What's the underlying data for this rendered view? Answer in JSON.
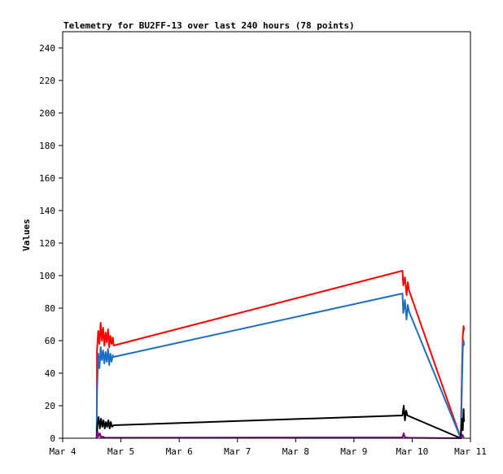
{
  "chart_data": {
    "type": "line",
    "title": "Telemetry for BU2FF-13 over last 240 hours (78 points)",
    "xlabel": "",
    "ylabel": "Values",
    "xlim": [
      "Mar 4",
      "Mar 11"
    ],
    "ylim": [
      0,
      250
    ],
    "grid": false,
    "legend": "none",
    "x_ticks": [
      "Mar 4",
      "Mar 5",
      "Mar 6",
      "Mar 7",
      "Mar 8",
      "Mar 9",
      "Mar 10",
      "Mar 11"
    ],
    "y_ticks": [
      0,
      20,
      40,
      60,
      80,
      100,
      120,
      140,
      160,
      180,
      200,
      220,
      240
    ],
    "series": [
      {
        "color": "#ff0000",
        "points": [
          [
            "Mar 4 14:00",
            0
          ],
          [
            "Mar 4 14:10",
            54
          ],
          [
            "Mar 4 14:40",
            66
          ],
          [
            "Mar 4 15:10",
            58
          ],
          [
            "Mar 4 15:40",
            71
          ],
          [
            "Mar 4 16:10",
            60
          ],
          [
            "Mar 4 16:40",
            68
          ],
          [
            "Mar 4 17:10",
            57
          ],
          [
            "Mar 4 17:40",
            65
          ],
          [
            "Mar 4 18:10",
            59
          ],
          [
            "Mar 4 18:40",
            67
          ],
          [
            "Mar 4 19:10",
            56
          ],
          [
            "Mar 4 19:40",
            63
          ],
          [
            "Mar 4 20:10",
            58
          ],
          [
            "Mar 4 20:40",
            62
          ],
          [
            "Mar 4 21:00",
            57
          ],
          [
            "Mar 9 20:00",
            103
          ],
          [
            "Mar 9 20:20",
            94
          ],
          [
            "Mar 9 21:00",
            99
          ],
          [
            "Mar 9 21:40",
            88
          ],
          [
            "Mar 9 22:10",
            96
          ],
          [
            "Mar 9 22:40",
            91
          ],
          [
            "Mar 10 20:00",
            0
          ],
          [
            "Mar 10 20:30",
            41
          ],
          [
            "Mar 10 20:50",
            63
          ],
          [
            "Mar 10 21:10",
            69
          ],
          [
            "Mar 10 21:20",
            66
          ]
        ]
      },
      {
        "color": "#1a6fc4",
        "points": [
          [
            "Mar 4 14:00",
            0
          ],
          [
            "Mar 4 14:10",
            28
          ],
          [
            "Mar 4 14:40",
            52
          ],
          [
            "Mar 4 15:10",
            43
          ],
          [
            "Mar 4 15:40",
            56
          ],
          [
            "Mar 4 16:10",
            48
          ],
          [
            "Mar 4 16:40",
            54
          ],
          [
            "Mar 4 17:10",
            46
          ],
          [
            "Mar 4 17:40",
            53
          ],
          [
            "Mar 4 18:10",
            47
          ],
          [
            "Mar 4 18:40",
            55
          ],
          [
            "Mar 4 19:10",
            45
          ],
          [
            "Mar 4 19:40",
            52
          ],
          [
            "Mar 4 20:10",
            47
          ],
          [
            "Mar 4 20:40",
            51
          ],
          [
            "Mar 4 21:00",
            50
          ],
          [
            "Mar 9 20:00",
            89
          ],
          [
            "Mar 9 20:20",
            77
          ],
          [
            "Mar 9 21:00",
            85
          ],
          [
            "Mar 9 21:40",
            73
          ],
          [
            "Mar 9 22:10",
            82
          ],
          [
            "Mar 9 22:40",
            78
          ],
          [
            "Mar 10 20:00",
            0
          ],
          [
            "Mar 10 20:30",
            34
          ],
          [
            "Mar 10 20:50",
            55
          ],
          [
            "Mar 10 21:10",
            60
          ],
          [
            "Mar 10 21:20",
            57
          ]
        ]
      },
      {
        "color": "#000000",
        "points": [
          [
            "Mar 4 14:00",
            0
          ],
          [
            "Mar 4 14:20",
            8
          ],
          [
            "Mar 4 14:50",
            13
          ],
          [
            "Mar 4 15:20",
            6
          ],
          [
            "Mar 4 15:50",
            12
          ],
          [
            "Mar 4 16:20",
            7
          ],
          [
            "Mar 4 16:50",
            11
          ],
          [
            "Mar 4 17:20",
            6
          ],
          [
            "Mar 4 17:50",
            10
          ],
          [
            "Mar 4 18:20",
            7
          ],
          [
            "Mar 4 18:50",
            11
          ],
          [
            "Mar 4 19:20",
            6
          ],
          [
            "Mar 4 19:50",
            10
          ],
          [
            "Mar 4 20:20",
            7
          ],
          [
            "Mar 4 21:00",
            8
          ],
          [
            "Mar 9 20:00",
            14
          ],
          [
            "Mar 9 20:30",
            20
          ],
          [
            "Mar 9 21:00",
            11
          ],
          [
            "Mar 9 21:30",
            17
          ],
          [
            "Mar 9 22:00",
            14
          ],
          [
            "Mar 10 20:00",
            0
          ],
          [
            "Mar 10 20:30",
            12
          ],
          [
            "Mar 10 20:50",
            5
          ],
          [
            "Mar 10 21:10",
            18
          ],
          [
            "Mar 10 21:20",
            10
          ]
        ]
      },
      {
        "color": "#800080",
        "points": [
          [
            "Mar 4 14:00",
            0
          ],
          [
            "Mar 4 14:20",
            4
          ],
          [
            "Mar 4 14:50",
            1
          ],
          [
            "Mar 4 15:20",
            3
          ],
          [
            "Mar 4 15:50",
            0.5
          ],
          [
            "Mar 4 16:30",
            1
          ],
          [
            "Mar 4 17:30",
            0.3
          ],
          [
            "Mar 4 21:00",
            0.3
          ],
          [
            "Mar 9 20:00",
            0.5
          ],
          [
            "Mar 9 20:30",
            3
          ],
          [
            "Mar 9 21:00",
            0.5
          ],
          [
            "Mar 9 22:00",
            0.3
          ],
          [
            "Mar 10 20:00",
            0
          ],
          [
            "Mar 10 20:40",
            2
          ],
          [
            "Mar 10 21:20",
            0.5
          ]
        ]
      }
    ]
  }
}
